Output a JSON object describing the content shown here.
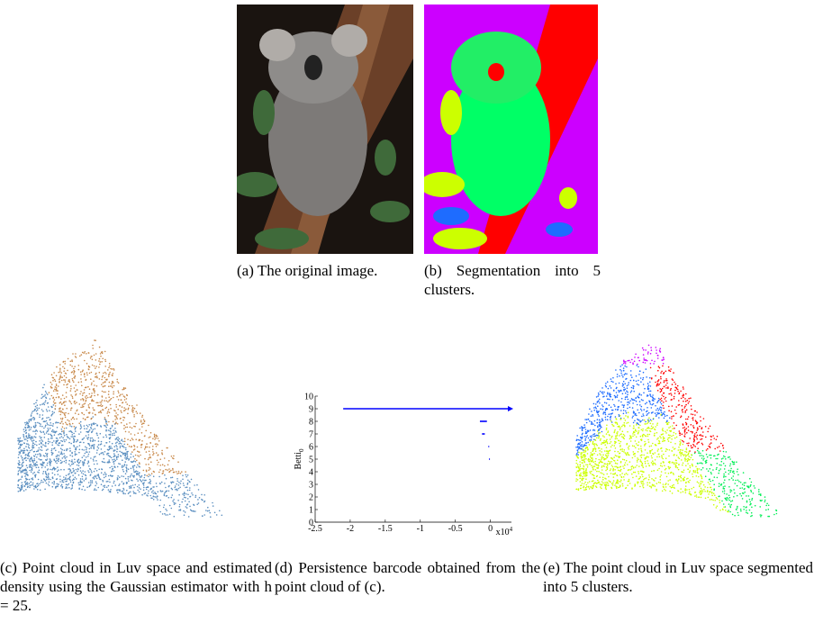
{
  "panels": [
    {
      "caption": "(a) The original image."
    },
    {
      "caption": "(b) Segmentation into 5 clusters."
    },
    {
      "caption": "(c) Point cloud in Luv space and estimated density using the Gaussian estimator with h = 25."
    },
    {
      "caption": "(d) Persistence barcode obtained from the point cloud of (c)."
    },
    {
      "caption": "(e) The point cloud in Luv space segmented into 5 clusters."
    }
  ],
  "chart_data": {
    "type": "barcode",
    "ylabel": "Betti",
    "ylabel_subscript": "0",
    "x_scale_label": "x10",
    "x_scale_exponent": "4",
    "xlim": [
      -2.5,
      0.3
    ],
    "xticks": [
      -2.5,
      -2,
      -1.5,
      -1,
      -0.5,
      0
    ],
    "ylim": [
      0,
      10
    ],
    "yticks": [
      0,
      1,
      2,
      3,
      4,
      5,
      6,
      7,
      8,
      9,
      10
    ],
    "color": "#0000ff",
    "bars": [
      {
        "level": 9,
        "start": -2.1,
        "end": null
      },
      {
        "level": 8,
        "start": -0.15,
        "end": -0.05
      },
      {
        "level": 7,
        "start": -0.12,
        "end": -0.08
      },
      {
        "level": 6,
        "start": -0.03,
        "end": -0.02
      },
      {
        "level": 5,
        "start": -0.02,
        "end": -0.01
      }
    ]
  }
}
